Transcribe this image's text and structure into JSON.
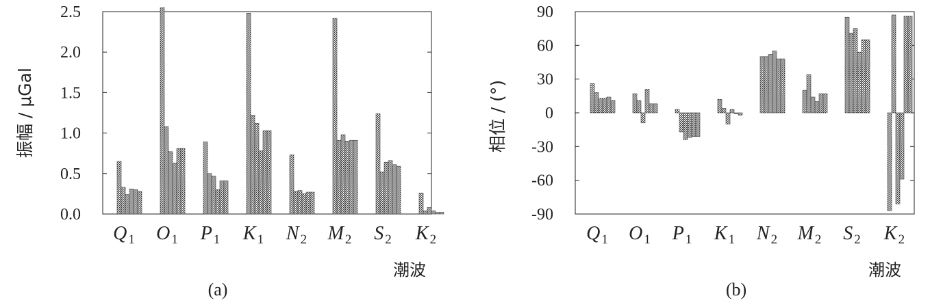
{
  "chart_data": [
    {
      "id": "a",
      "type": "bar",
      "panel_label": "(a)",
      "ylabel": "振幅 / μGal",
      "xlabel": "潮波",
      "ylim": [
        0,
        2.5
      ],
      "yticks": [
        "0.0",
        "0.5",
        "1.0",
        "1.5",
        "2.0",
        "2.5"
      ],
      "grid": false,
      "bars_per_group": 6,
      "categories": [
        {
          "letter": "Q",
          "sub": "1"
        },
        {
          "letter": "O",
          "sub": "1"
        },
        {
          "letter": "P",
          "sub": "1"
        },
        {
          "letter": "K",
          "sub": "1"
        },
        {
          "letter": "N",
          "sub": "2"
        },
        {
          "letter": "M",
          "sub": "2"
        },
        {
          "letter": "S",
          "sub": "2"
        },
        {
          "letter": "K",
          "sub": "2"
        }
      ],
      "values": [
        [
          0.65,
          0.33,
          0.24,
          0.31,
          0.3,
          0.28
        ],
        [
          2.55,
          1.08,
          0.77,
          0.63,
          0.81,
          0.81
        ],
        [
          0.89,
          0.5,
          0.47,
          0.3,
          0.41,
          0.41
        ],
        [
          2.48,
          1.22,
          1.12,
          0.78,
          1.03,
          1.03
        ],
        [
          0.73,
          0.28,
          0.29,
          0.25,
          0.27,
          0.27
        ],
        [
          2.42,
          0.91,
          0.98,
          0.9,
          0.91,
          0.91
        ],
        [
          1.24,
          0.52,
          0.64,
          0.66,
          0.61,
          0.59
        ],
        [
          0.26,
          0.04,
          0.08,
          0.04,
          0.02,
          0.02
        ]
      ]
    },
    {
      "id": "b",
      "type": "bar",
      "panel_label": "(b)",
      "ylabel": "相位 / (°)",
      "xlabel": "潮波",
      "ylim": [
        -90,
        90
      ],
      "yticks": [
        "90",
        "60",
        "30",
        "0",
        "-30",
        "-60",
        "-90"
      ],
      "grid": false,
      "bars_per_group": 6,
      "categories": [
        {
          "letter": "Q",
          "sub": "1"
        },
        {
          "letter": "O",
          "sub": "1"
        },
        {
          "letter": "P",
          "sub": "1"
        },
        {
          "letter": "K",
          "sub": "1"
        },
        {
          "letter": "N",
          "sub": "2"
        },
        {
          "letter": "M",
          "sub": "2"
        },
        {
          "letter": "S",
          "sub": "2"
        },
        {
          "letter": "K",
          "sub": "2"
        }
      ],
      "values": [
        [
          26,
          18,
          13,
          13,
          14,
          11
        ],
        [
          17,
          11,
          -9,
          21,
          8,
          8
        ],
        [
          3,
          -17,
          -24,
          -22,
          -21,
          -21
        ],
        [
          12,
          4,
          -10,
          3,
          -1,
          -2
        ],
        [
          50,
          50,
          52,
          55,
          48,
          48
        ],
        [
          20,
          34,
          14,
          10,
          17,
          17
        ],
        [
          85,
          71,
          75,
          54,
          65,
          65
        ],
        [
          -87,
          87,
          -81,
          -59,
          86,
          86
        ]
      ]
    }
  ]
}
